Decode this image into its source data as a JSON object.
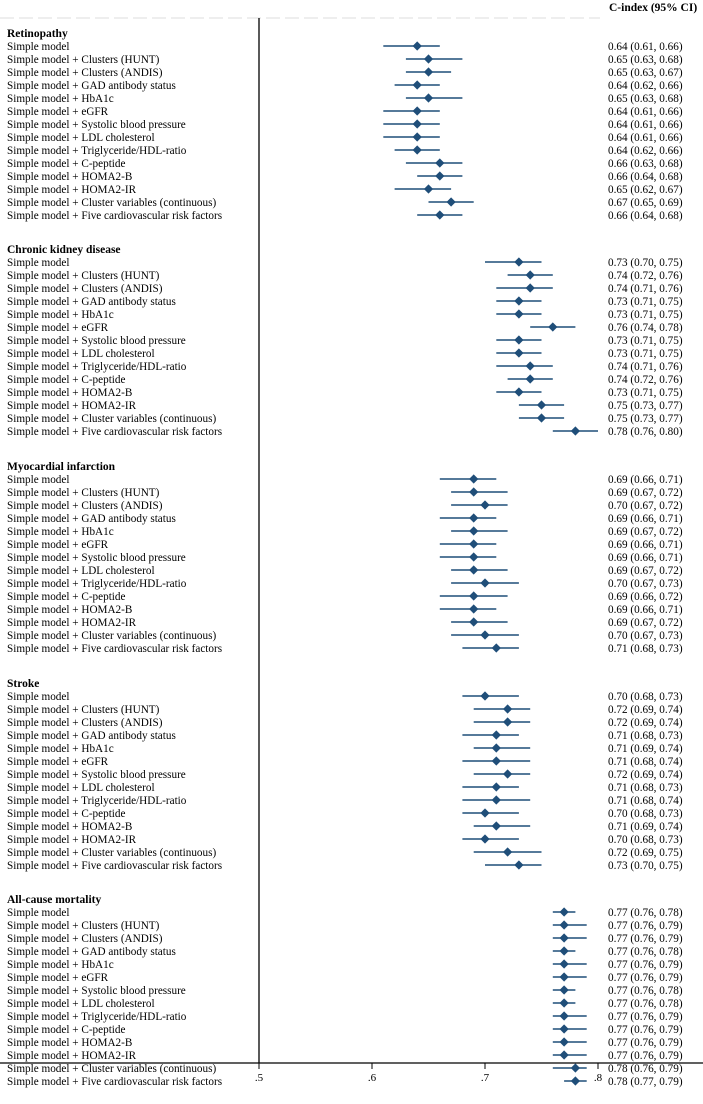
{
  "chart_data": {
    "type": "forest",
    "title": "",
    "column_header": "C-index (95% CI)",
    "xlabel": "",
    "xlim": [
      0.5,
      0.8
    ],
    "xticks": [
      0.5,
      0.6,
      0.7,
      0.8
    ],
    "xtick_labels": [
      ".5",
      ".6",
      ".7",
      ".8"
    ],
    "marker_color": "#1f4e79",
    "groups": [
      {
        "name": "Retinopathy",
        "rows": [
          {
            "label": "Simple model",
            "est": 0.64,
            "lo": 0.61,
            "hi": 0.66,
            "ci_text": "0.64 (0.61, 0.66)"
          },
          {
            "label": "Simple model + Clusters (HUNT)",
            "est": 0.65,
            "lo": 0.63,
            "hi": 0.68,
            "ci_text": "0.65 (0.63, 0.68)"
          },
          {
            "label": "Simple model + Clusters (ANDIS)",
            "est": 0.65,
            "lo": 0.63,
            "hi": 0.67,
            "ci_text": "0.65 (0.63, 0.67)"
          },
          {
            "label": "Simple model + GAD antibody status",
            "est": 0.64,
            "lo": 0.62,
            "hi": 0.66,
            "ci_text": "0.64 (0.62, 0.66)"
          },
          {
            "label": "Simple model + HbA1c",
            "est": 0.65,
            "lo": 0.63,
            "hi": 0.68,
            "ci_text": "0.65 (0.63, 0.68)"
          },
          {
            "label": "Simple model + eGFR",
            "est": 0.64,
            "lo": 0.61,
            "hi": 0.66,
            "ci_text": "0.64 (0.61, 0.66)"
          },
          {
            "label": "Simple model + Systolic blood pressure",
            "est": 0.64,
            "lo": 0.61,
            "hi": 0.66,
            "ci_text": "0.64 (0.61, 0.66)"
          },
          {
            "label": "Simple model + LDL cholesterol",
            "est": 0.64,
            "lo": 0.61,
            "hi": 0.66,
            "ci_text": "0.64 (0.61, 0.66)"
          },
          {
            "label": "Simple model + Triglyceride/HDL-ratio",
            "est": 0.64,
            "lo": 0.62,
            "hi": 0.66,
            "ci_text": "0.64 (0.62, 0.66)"
          },
          {
            "label": "Simple model + C-peptide",
            "est": 0.66,
            "lo": 0.63,
            "hi": 0.68,
            "ci_text": "0.66 (0.63, 0.68)"
          },
          {
            "label": "Simple model + HOMA2-B",
            "est": 0.66,
            "lo": 0.64,
            "hi": 0.68,
            "ci_text": "0.66 (0.64, 0.68)"
          },
          {
            "label": "Simple model + HOMA2-IR",
            "est": 0.65,
            "lo": 0.62,
            "hi": 0.67,
            "ci_text": "0.65 (0.62, 0.67)"
          },
          {
            "label": "Simple model + Cluster variables (continuous)",
            "est": 0.67,
            "lo": 0.65,
            "hi": 0.69,
            "ci_text": "0.67 (0.65, 0.69)"
          },
          {
            "label": "Simple model + Five cardiovascular risk factors",
            "est": 0.66,
            "lo": 0.64,
            "hi": 0.68,
            "ci_text": "0.66 (0.64, 0.68)"
          }
        ]
      },
      {
        "name": "Chronic kidney disease",
        "rows": [
          {
            "label": "Simple model",
            "est": 0.73,
            "lo": 0.7,
            "hi": 0.75,
            "ci_text": "0.73 (0.70, 0.75)"
          },
          {
            "label": "Simple model + Clusters (HUNT)",
            "est": 0.74,
            "lo": 0.72,
            "hi": 0.76,
            "ci_text": "0.74 (0.72, 0.76)"
          },
          {
            "label": "Simple model + Clusters (ANDIS)",
            "est": 0.74,
            "lo": 0.71,
            "hi": 0.76,
            "ci_text": "0.74 (0.71, 0.76)"
          },
          {
            "label": "Simple model + GAD antibody status",
            "est": 0.73,
            "lo": 0.71,
            "hi": 0.75,
            "ci_text": "0.73 (0.71, 0.75)"
          },
          {
            "label": "Simple model + HbA1c",
            "est": 0.73,
            "lo": 0.71,
            "hi": 0.75,
            "ci_text": "0.73 (0.71, 0.75)"
          },
          {
            "label": "Simple model + eGFR",
            "est": 0.76,
            "lo": 0.74,
            "hi": 0.78,
            "ci_text": "0.76 (0.74, 0.78)"
          },
          {
            "label": "Simple model + Systolic blood pressure",
            "est": 0.73,
            "lo": 0.71,
            "hi": 0.75,
            "ci_text": "0.73 (0.71, 0.75)"
          },
          {
            "label": "Simple model + LDL cholesterol",
            "est": 0.73,
            "lo": 0.71,
            "hi": 0.75,
            "ci_text": "0.73 (0.71, 0.75)"
          },
          {
            "label": "Simple model + Triglyceride/HDL-ratio",
            "est": 0.74,
            "lo": 0.71,
            "hi": 0.76,
            "ci_text": "0.74 (0.71, 0.76)"
          },
          {
            "label": "Simple model + C-peptide",
            "est": 0.74,
            "lo": 0.72,
            "hi": 0.76,
            "ci_text": "0.74 (0.72, 0.76)"
          },
          {
            "label": "Simple model + HOMA2-B",
            "est": 0.73,
            "lo": 0.71,
            "hi": 0.75,
            "ci_text": "0.73 (0.71, 0.75)"
          },
          {
            "label": "Simple model + HOMA2-IR",
            "est": 0.75,
            "lo": 0.73,
            "hi": 0.77,
            "ci_text": "0.75 (0.73, 0.77)"
          },
          {
            "label": "Simple model + Cluster variables (continuous)",
            "est": 0.75,
            "lo": 0.73,
            "hi": 0.77,
            "ci_text": "0.75 (0.73, 0.77)"
          },
          {
            "label": "Simple model + Five cardiovascular risk factors",
            "est": 0.78,
            "lo": 0.76,
            "hi": 0.8,
            "ci_text": "0.78 (0.76, 0.80)"
          }
        ]
      },
      {
        "name": "Myocardial infarction",
        "rows": [
          {
            "label": "Simple model",
            "est": 0.69,
            "lo": 0.66,
            "hi": 0.71,
            "ci_text": "0.69 (0.66, 0.71)"
          },
          {
            "label": "Simple model + Clusters (HUNT)",
            "est": 0.69,
            "lo": 0.67,
            "hi": 0.72,
            "ci_text": "0.69 (0.67, 0.72)"
          },
          {
            "label": "Simple model + Clusters (ANDIS)",
            "est": 0.7,
            "lo": 0.67,
            "hi": 0.72,
            "ci_text": "0.70 (0.67, 0.72)"
          },
          {
            "label": "Simple model + GAD antibody status",
            "est": 0.69,
            "lo": 0.66,
            "hi": 0.71,
            "ci_text": "0.69 (0.66, 0.71)"
          },
          {
            "label": "Simple model + HbA1c",
            "est": 0.69,
            "lo": 0.67,
            "hi": 0.72,
            "ci_text": "0.69 (0.67, 0.72)"
          },
          {
            "label": "Simple model + eGFR",
            "est": 0.69,
            "lo": 0.66,
            "hi": 0.71,
            "ci_text": "0.69 (0.66, 0.71)"
          },
          {
            "label": "Simple model + Systolic blood pressure",
            "est": 0.69,
            "lo": 0.66,
            "hi": 0.71,
            "ci_text": "0.69 (0.66, 0.71)"
          },
          {
            "label": "Simple model + LDL cholesterol",
            "est": 0.69,
            "lo": 0.67,
            "hi": 0.72,
            "ci_text": "0.69 (0.67, 0.72)"
          },
          {
            "label": "Simple model + Triglyceride/HDL-ratio",
            "est": 0.7,
            "lo": 0.67,
            "hi": 0.73,
            "ci_text": "0.70 (0.67, 0.73)"
          },
          {
            "label": "Simple model + C-peptide",
            "est": 0.69,
            "lo": 0.66,
            "hi": 0.72,
            "ci_text": "0.69 (0.66, 0.72)"
          },
          {
            "label": "Simple model + HOMA2-B",
            "est": 0.69,
            "lo": 0.66,
            "hi": 0.71,
            "ci_text": "0.69 (0.66, 0.71)"
          },
          {
            "label": "Simple model + HOMA2-IR",
            "est": 0.69,
            "lo": 0.67,
            "hi": 0.72,
            "ci_text": "0.69 (0.67, 0.72)"
          },
          {
            "label": "Simple model + Cluster variables (continuous)",
            "est": 0.7,
            "lo": 0.67,
            "hi": 0.73,
            "ci_text": "0.70 (0.67, 0.73)"
          },
          {
            "label": "Simple model + Five cardiovascular risk factors",
            "est": 0.71,
            "lo": 0.68,
            "hi": 0.73,
            "ci_text": "0.71 (0.68, 0.73)"
          }
        ]
      },
      {
        "name": "Stroke",
        "rows": [
          {
            "label": "Simple model",
            "est": 0.7,
            "lo": 0.68,
            "hi": 0.73,
            "ci_text": "0.70 (0.68, 0.73)"
          },
          {
            "label": "Simple model + Clusters (HUNT)",
            "est": 0.72,
            "lo": 0.69,
            "hi": 0.74,
            "ci_text": "0.72 (0.69, 0.74)"
          },
          {
            "label": "Simple model + Clusters (ANDIS)",
            "est": 0.72,
            "lo": 0.69,
            "hi": 0.74,
            "ci_text": "0.72 (0.69, 0.74)"
          },
          {
            "label": "Simple model + GAD antibody status",
            "est": 0.71,
            "lo": 0.68,
            "hi": 0.73,
            "ci_text": "0.71 (0.68, 0.73)"
          },
          {
            "label": "Simple model + HbA1c",
            "est": 0.71,
            "lo": 0.69,
            "hi": 0.74,
            "ci_text": "0.71 (0.69, 0.74)"
          },
          {
            "label": "Simple model + eGFR",
            "est": 0.71,
            "lo": 0.68,
            "hi": 0.74,
            "ci_text": "0.71 (0.68, 0.74)"
          },
          {
            "label": "Simple model + Systolic blood pressure",
            "est": 0.72,
            "lo": 0.69,
            "hi": 0.74,
            "ci_text": "0.72 (0.69, 0.74)"
          },
          {
            "label": "Simple model + LDL cholesterol",
            "est": 0.71,
            "lo": 0.68,
            "hi": 0.73,
            "ci_text": "0.71 (0.68, 0.73)"
          },
          {
            "label": "Simple model + Triglyceride/HDL-ratio",
            "est": 0.71,
            "lo": 0.68,
            "hi": 0.74,
            "ci_text": "0.71 (0.68, 0.74)"
          },
          {
            "label": "Simple model + C-peptide",
            "est": 0.7,
            "lo": 0.68,
            "hi": 0.73,
            "ci_text": "0.70 (0.68, 0.73)"
          },
          {
            "label": "Simple model + HOMA2-B",
            "est": 0.71,
            "lo": 0.69,
            "hi": 0.74,
            "ci_text": "0.71 (0.69, 0.74)"
          },
          {
            "label": "Simple model + HOMA2-IR",
            "est": 0.7,
            "lo": 0.68,
            "hi": 0.73,
            "ci_text": "0.70 (0.68, 0.73)"
          },
          {
            "label": "Simple model + Cluster variables (continuous)",
            "est": 0.72,
            "lo": 0.69,
            "hi": 0.75,
            "ci_text": "0.72 (0.69, 0.75)"
          },
          {
            "label": "Simple model + Five cardiovascular risk factors",
            "est": 0.73,
            "lo": 0.7,
            "hi": 0.75,
            "ci_text": "0.73 (0.70, 0.75)"
          }
        ]
      },
      {
        "name": "All-cause mortality",
        "rows": [
          {
            "label": "Simple model",
            "est": 0.77,
            "lo": 0.76,
            "hi": 0.78,
            "ci_text": "0.77 (0.76, 0.78)"
          },
          {
            "label": "Simple model + Clusters (HUNT)",
            "est": 0.77,
            "lo": 0.76,
            "hi": 0.79,
            "ci_text": "0.77 (0.76, 0.79)"
          },
          {
            "label": "Simple model + Clusters (ANDIS)",
            "est": 0.77,
            "lo": 0.76,
            "hi": 0.79,
            "ci_text": "0.77 (0.76, 0.79)"
          },
          {
            "label": "Simple model + GAD antibody status",
            "est": 0.77,
            "lo": 0.76,
            "hi": 0.78,
            "ci_text": "0.77 (0.76, 0.78)"
          },
          {
            "label": "Simple model + HbA1c",
            "est": 0.77,
            "lo": 0.76,
            "hi": 0.79,
            "ci_text": "0.77 (0.76, 0.79)"
          },
          {
            "label": "Simple model + eGFR",
            "est": 0.77,
            "lo": 0.76,
            "hi": 0.79,
            "ci_text": "0.77 (0.76, 0.79)"
          },
          {
            "label": "Simple model + Systolic blood pressure",
            "est": 0.77,
            "lo": 0.76,
            "hi": 0.78,
            "ci_text": "0.77 (0.76, 0.78)"
          },
          {
            "label": "Simple model + LDL cholesterol",
            "est": 0.77,
            "lo": 0.76,
            "hi": 0.78,
            "ci_text": "0.77 (0.76, 0.78)"
          },
          {
            "label": "Simple model + Triglyceride/HDL-ratio",
            "est": 0.77,
            "lo": 0.76,
            "hi": 0.79,
            "ci_text": "0.77 (0.76, 0.79)"
          },
          {
            "label": "Simple model + C-peptide",
            "est": 0.77,
            "lo": 0.76,
            "hi": 0.79,
            "ci_text": "0.77 (0.76, 0.79)"
          },
          {
            "label": "Simple model + HOMA2-B",
            "est": 0.77,
            "lo": 0.76,
            "hi": 0.79,
            "ci_text": "0.77 (0.76, 0.79)"
          },
          {
            "label": "Simple model + HOMA2-IR",
            "est": 0.77,
            "lo": 0.76,
            "hi": 0.79,
            "ci_text": "0.77 (0.76, 0.79)"
          },
          {
            "label": "Simple model + Cluster variables (continuous)",
            "est": 0.78,
            "lo": 0.76,
            "hi": 0.79,
            "ci_text": "0.78 (0.76, 0.79)"
          },
          {
            "label": "Simple model + Five cardiovascular risk factors",
            "est": 0.78,
            "lo": 0.77,
            "hi": 0.79,
            "ci_text": "0.78 (0.77, 0.79)"
          }
        ]
      }
    ]
  }
}
